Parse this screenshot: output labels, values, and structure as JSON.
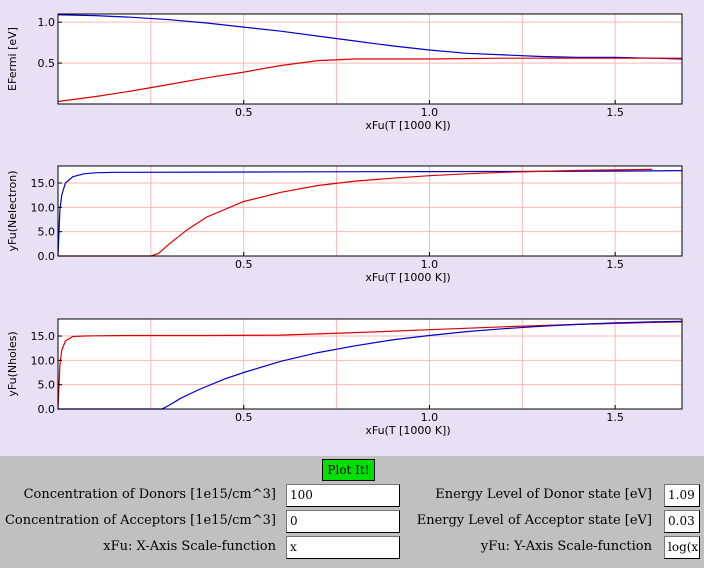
{
  "chart_data": [
    {
      "type": "line",
      "xlabel": "xFu(T [1000 K])",
      "ylabel": "EFermi [eV]",
      "xlim": [
        0,
        1.68
      ],
      "ylim": [
        0,
        1.1
      ],
      "xticks": [
        0.5,
        1.0,
        1.5
      ],
      "xtick_labels": [
        "0.5",
        "1.0",
        "1.5"
      ],
      "yticks": [
        0.5,
        1.0
      ],
      "ytick_labels": [
        "0.5",
        "1.0"
      ],
      "series": [
        {
          "color": "#0000cc",
          "x": [
            0,
            0.1,
            0.2,
            0.3,
            0.4,
            0.5,
            0.6,
            0.7,
            0.8,
            0.9,
            1.0,
            1.1,
            1.2,
            1.3,
            1.4,
            1.5,
            1.6,
            1.68
          ],
          "y": [
            1.09,
            1.08,
            1.06,
            1.03,
            0.99,
            0.94,
            0.89,
            0.83,
            0.77,
            0.71,
            0.66,
            0.62,
            0.6,
            0.58,
            0.57,
            0.57,
            0.56,
            0.55
          ]
        },
        {
          "color": "#dd0000",
          "x": [
            0,
            0.1,
            0.2,
            0.3,
            0.4,
            0.5,
            0.6,
            0.7,
            0.8,
            0.9,
            1.0,
            1.2,
            1.4,
            1.6,
            1.68
          ],
          "y": [
            0.03,
            0.09,
            0.16,
            0.24,
            0.32,
            0.39,
            0.47,
            0.53,
            0.55,
            0.55,
            0.55,
            0.56,
            0.56,
            0.56,
            0.56
          ]
        }
      ]
    },
    {
      "type": "line",
      "xlabel": "xFu(T [1000 K])",
      "ylabel": "yFu(Nelectron)",
      "xlim": [
        0,
        1.68
      ],
      "ylim": [
        0,
        18.5
      ],
      "xticks": [
        0.5,
        1.0,
        1.5
      ],
      "xtick_labels": [
        "0.5",
        "1.0",
        "1.5"
      ],
      "yticks": [
        0,
        5,
        10,
        15
      ],
      "ytick_labels": [
        "0.0",
        "5.0",
        "10.0",
        "15.0"
      ],
      "series": [
        {
          "color": "#0000cc",
          "x": [
            0,
            0.005,
            0.01,
            0.02,
            0.04,
            0.07,
            0.1,
            0.15,
            0.2,
            0.4,
            0.7,
            1.0,
            1.3,
            1.6,
            1.68
          ],
          "y": [
            0,
            9.5,
            12.5,
            15,
            16.3,
            16.9,
            17.1,
            17.2,
            17.2,
            17.25,
            17.3,
            17.35,
            17.4,
            17.5,
            17.55
          ]
        },
        {
          "color": "#dd0000",
          "x": [
            0,
            0.25,
            0.27,
            0.3,
            0.35,
            0.4,
            0.5,
            0.6,
            0.7,
            0.8,
            0.9,
            1.0,
            1.1,
            1.2,
            1.3,
            1.4,
            1.5,
            1.6
          ],
          "y": [
            0,
            0,
            0.5,
            2.5,
            5.5,
            8.0,
            11.2,
            13.1,
            14.5,
            15.4,
            16.0,
            16.5,
            16.9,
            17.2,
            17.4,
            17.6,
            17.7,
            17.8
          ]
        }
      ]
    },
    {
      "type": "line",
      "xlabel": "xFu(T [1000 K])",
      "ylabel": "yFu(Nholes)",
      "xlim": [
        0,
        1.68
      ],
      "ylim": [
        0,
        18.5
      ],
      "xticks": [
        0.5,
        1.0,
        1.5
      ],
      "xtick_labels": [
        "0.5",
        "1.0",
        "1.5"
      ],
      "yticks": [
        0,
        5,
        10,
        15
      ],
      "ytick_labels": [
        "0.0",
        "5.0",
        "10.0",
        "15.0"
      ],
      "series": [
        {
          "color": "#dd0000",
          "x": [
            0,
            0.005,
            0.01,
            0.02,
            0.04,
            0.07,
            0.1,
            0.2,
            0.4,
            0.6,
            0.8,
            1.0,
            1.2,
            1.4,
            1.6,
            1.68
          ],
          "y": [
            0,
            9.0,
            12.0,
            14.0,
            14.9,
            15.0,
            15.05,
            15.1,
            15.1,
            15.2,
            15.7,
            16.3,
            16.9,
            17.4,
            17.8,
            17.9
          ]
        },
        {
          "color": "#0000cc",
          "x": [
            0,
            0.28,
            0.3,
            0.33,
            0.38,
            0.45,
            0.5,
            0.6,
            0.7,
            0.8,
            0.9,
            1.0,
            1.1,
            1.2,
            1.3,
            1.4,
            1.5,
            1.6,
            1.68
          ],
          "y": [
            0,
            0,
            0.8,
            2.2,
            4.0,
            6.2,
            7.5,
            9.8,
            11.6,
            13.0,
            14.2,
            15.1,
            15.9,
            16.5,
            17.0,
            17.4,
            17.7,
            17.9,
            18.0
          ]
        }
      ]
    }
  ],
  "form": {
    "plot_button": "Plot It!",
    "donors_label": "Concentration of Donors [1e15/cm^3]",
    "donors_value": "100",
    "acceptors_label": "Concentration of Acceptors [1e15/cm^3]",
    "acceptors_value": "0",
    "xfu_label": "xFu: X-Axis Scale-function",
    "xfu_value": "x",
    "donor_energy_label": "Energy Level of Donor state [eV]",
    "donor_energy_value": "1.09",
    "acceptor_energy_label": "Energy Level of Acceptor state [eV]",
    "acceptor_energy_value": "0.03",
    "yfu_label": "yFu: Y-Axis Scale-function",
    "yfu_value": "log(x"
  }
}
